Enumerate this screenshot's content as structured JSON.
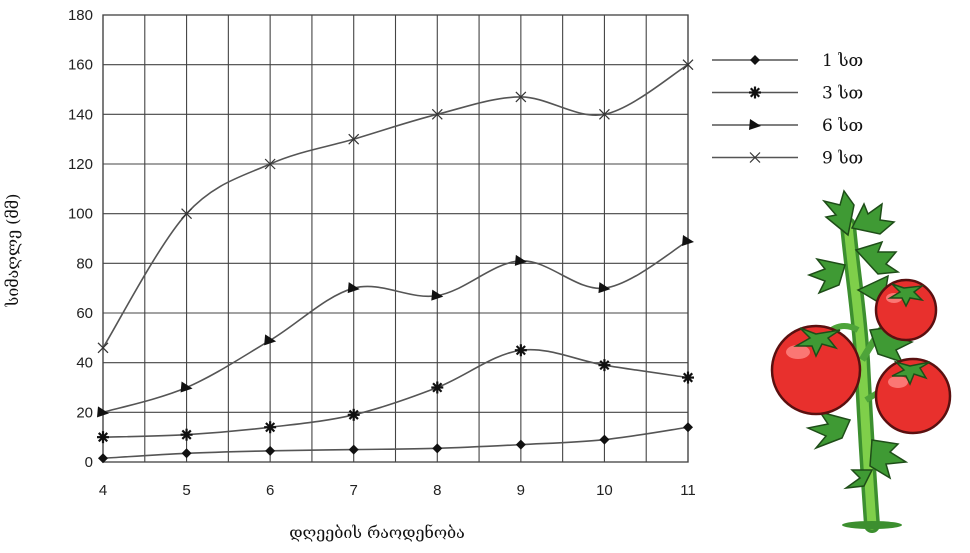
{
  "chart_data": {
    "type": "line",
    "x": [
      4,
      5,
      6,
      7,
      8,
      9,
      10,
      11
    ],
    "xlabel": "დღეების რაოდენობა",
    "ylabel": "სიმაღლე (მმ)",
    "ylim": [
      0,
      180
    ],
    "yticks": [
      0,
      20,
      40,
      60,
      80,
      100,
      120,
      140,
      160,
      180
    ],
    "grid": true,
    "legend_position": "top-right",
    "series": [
      {
        "name": "1 სთ",
        "marker": "diamond",
        "values": [
          1.5,
          3.5,
          4.5,
          5,
          5.5,
          7,
          9,
          14
        ]
      },
      {
        "name": "3 სთ",
        "marker": "asterisk",
        "values": [
          10,
          11,
          14,
          19,
          30,
          45,
          39,
          34
        ]
      },
      {
        "name": "6 სთ",
        "marker": "triangle",
        "values": [
          20,
          30,
          49,
          70,
          67,
          81,
          70,
          89
        ]
      },
      {
        "name": "9 სთ",
        "marker": "cross",
        "values": [
          46,
          100,
          120,
          130,
          140,
          147,
          140,
          160
        ]
      }
    ]
  },
  "illustration": {
    "icon": "tomato-plant-icon"
  }
}
